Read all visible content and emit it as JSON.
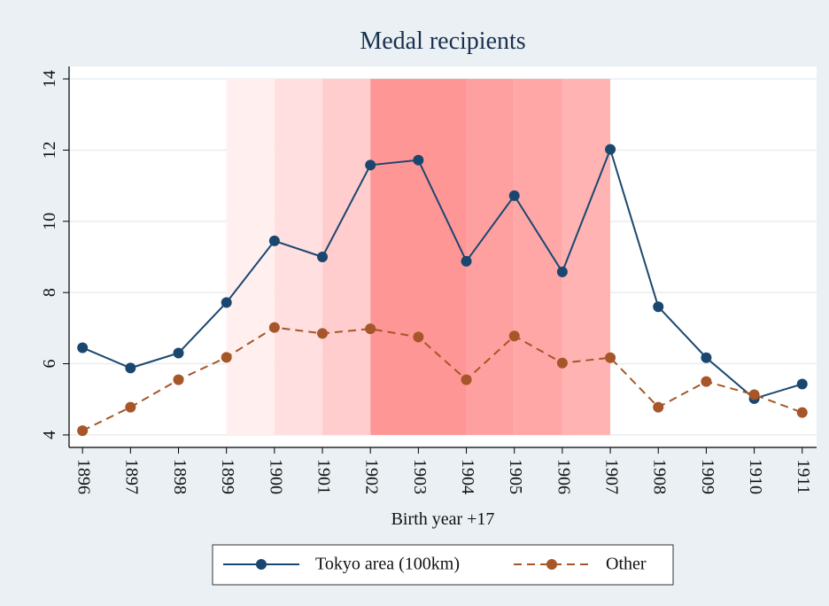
{
  "chart_data": {
    "type": "line",
    "title": "Medal recipients",
    "x_label": "Birth year +17",
    "x": [
      1896,
      1897,
      1898,
      1899,
      1900,
      1901,
      1902,
      1903,
      1904,
      1905,
      1906,
      1907,
      1908,
      1909,
      1910,
      1911
    ],
    "series": [
      {
        "name": "Tokyo area (100km)",
        "color": "#1a476f",
        "dash": false,
        "values": [
          6.45,
          5.88,
          6.3,
          7.72,
          9.45,
          9.0,
          11.58,
          11.72,
          8.88,
          10.72,
          8.58,
          12.02,
          7.6,
          6.17,
          5.02,
          5.43
        ]
      },
      {
        "name": "Other",
        "color": "#a65628",
        "dash": true,
        "values": [
          4.12,
          4.78,
          5.55,
          6.18,
          7.02,
          6.85,
          6.98,
          6.75,
          5.55,
          6.78,
          6.02,
          6.17,
          4.78,
          5.5,
          5.13,
          4.63
        ]
      }
    ],
    "shaded_regions": [
      {
        "start": 1899,
        "end": 1900,
        "color": "#fff0ef"
      },
      {
        "start": 1900,
        "end": 1901,
        "color": "#ffdfdf"
      },
      {
        "start": 1901,
        "end": 1902,
        "color": "#ffcdcd"
      },
      {
        "start": 1902,
        "end": 1904,
        "color": "#ff9696"
      },
      {
        "start": 1904,
        "end": 1905,
        "color": "#ffa0a0"
      },
      {
        "start": 1905,
        "end": 1906,
        "color": "#ffa7a7"
      },
      {
        "start": 1906,
        "end": 1907,
        "color": "#ffb3b3"
      }
    ],
    "xlim": [
      1895.72,
      1911.3
    ],
    "xticks": [
      1896,
      1897,
      1898,
      1899,
      1900,
      1901,
      1902,
      1903,
      1904,
      1905,
      1906,
      1907,
      1908,
      1909,
      1910,
      1911
    ],
    "ylim": [
      3.65,
      14.35
    ],
    "yticks": [
      4,
      6,
      8,
      10,
      12,
      14
    ],
    "grid": true
  }
}
